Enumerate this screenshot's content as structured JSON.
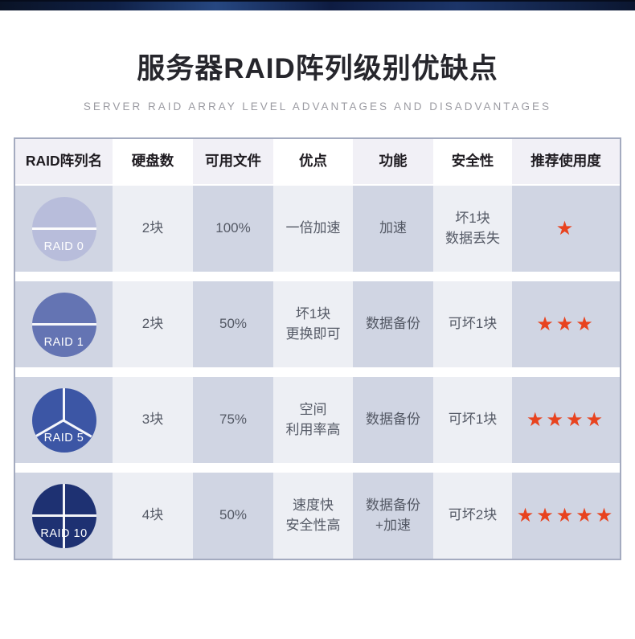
{
  "header": {
    "title": "服务器RAID阵列级别优缺点",
    "subtitle": "SERVER RAID ARRAY LEVEL ADVANTAGES AND DISADVANTAGES"
  },
  "colors": {
    "star_accent": "#e8431f",
    "table_border": "#a4abc0",
    "body_cell_odd": "#d0d5e3",
    "body_cell_even": "#edeff4",
    "header_cell_odd": "#f1f0f6",
    "topbar_navy": "#0e1c42"
  },
  "table": {
    "columns": [
      "RAID阵列名",
      "硬盘数",
      "可用文件",
      "优点",
      "功能",
      "安全性",
      "推荐使用度"
    ],
    "rows": [
      {
        "name": "RAID 0",
        "disks": "2块",
        "usable": "100%",
        "advantage": "一倍加速",
        "function": "加速",
        "safety": "坏1块\n数据丢失",
        "stars": 1,
        "stars_text": "★",
        "icon": "disk-pie-2-segments",
        "icon_color": "#b8bddb"
      },
      {
        "name": "RAID 1",
        "disks": "2块",
        "usable": "50%",
        "advantage": "坏1块\n更换即可",
        "function": "数据备份",
        "safety": "可坏1块",
        "stars": 3,
        "stars_text": "★★★",
        "icon": "disk-pie-2-segments",
        "icon_color": "#6474b3"
      },
      {
        "name": "RAID 5",
        "disks": "3块",
        "usable": "75%",
        "advantage": "空间\n利用率高",
        "function": "数据备份",
        "safety": "可坏1块",
        "stars": 4,
        "stars_text": "★★★★",
        "icon": "disk-pie-3-segments",
        "icon_color": "#3c56a5"
      },
      {
        "name": "RAID 10",
        "disks": "4块",
        "usable": "50%",
        "advantage": "速度快\n安全性高",
        "function": "数据备份\n+加速",
        "safety": "可坏2块",
        "stars": 5,
        "stars_text": "★★★★★",
        "icon": "disk-pie-4-segments",
        "icon_color": "#1e3172"
      }
    ]
  },
  "chart_data": {
    "type": "table",
    "title": "服务器RAID阵列级别优缺点",
    "subtitle": "SERVER RAID ARRAY LEVEL ADVANTAGES AND DISADVANTAGES",
    "columns": [
      "RAID阵列名",
      "硬盘数",
      "可用文件",
      "优点",
      "功能",
      "安全性",
      "推荐使用度"
    ],
    "rows": [
      [
        "RAID 0",
        "2块",
        "100%",
        "一倍加速",
        "加速",
        "坏1块 数据丢失",
        "1星"
      ],
      [
        "RAID 1",
        "2块",
        "50%",
        "坏1块 更换即可",
        "数据备份",
        "可坏1块",
        "3星"
      ],
      [
        "RAID 5",
        "3块",
        "75%",
        "空间 利用率高",
        "数据备份",
        "可坏1块",
        "4星"
      ],
      [
        "RAID 10",
        "4块",
        "50%",
        "速度快 安全性高",
        "数据备份 +加速",
        "可坏2块",
        "5星"
      ]
    ],
    "star_ratings": [
      1,
      3,
      4,
      5
    ]
  }
}
